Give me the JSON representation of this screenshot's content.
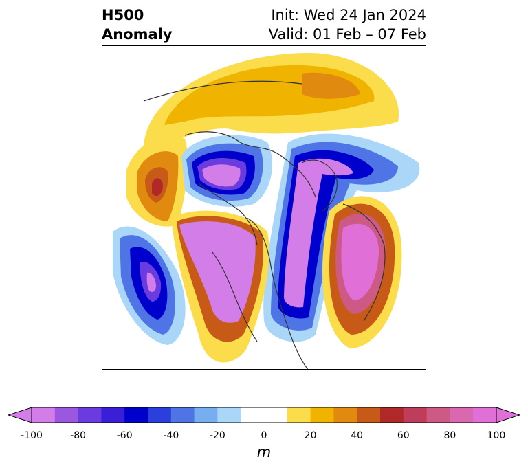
{
  "title": {
    "left_line1": "H500",
    "left_line2": "Anomaly",
    "right_line1": "Init: Wed 24 Jan 2024",
    "right_line2": "Valid: 01 Feb – 07 Feb"
  },
  "colorbar": {
    "unit": "m",
    "ticks": [
      "-100",
      "-80",
      "-60",
      "-40",
      "-20",
      "0",
      "20",
      "40",
      "60",
      "80",
      "100"
    ],
    "colors": [
      "#d37ee8",
      "#9b57e0",
      "#6a3ce0",
      "#3b1fd8",
      "#0000cc",
      "#2a3fdc",
      "#4f74e6",
      "#77aef0",
      "#aad6f8",
      "#ffffff",
      "#ffffff",
      "#fbdd4c",
      "#f0b400",
      "#e08a10",
      "#c85a18",
      "#b02828",
      "#bf3d5a",
      "#cc5a85",
      "#d868b0",
      "#e070d8"
    ]
  }
}
